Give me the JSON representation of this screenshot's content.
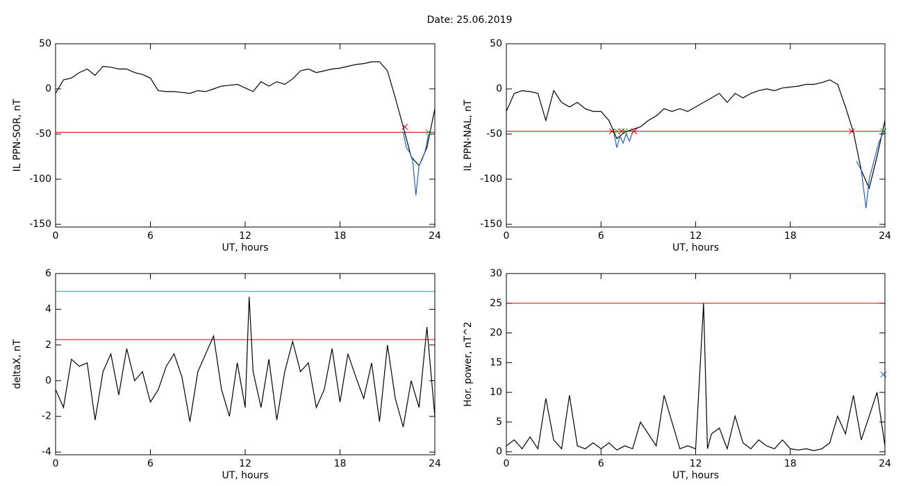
{
  "title": "Date:  25.06.2019",
  "chart_data": [
    {
      "type": "line",
      "xlabel": "UT, hours",
      "ylabel": "IL PPN-SOR, nT",
      "xlim": [
        0,
        24
      ],
      "xticks": [
        0,
        6,
        12,
        18,
        24
      ],
      "ylim": [
        -153,
        50
      ],
      "yticks": [
        -150,
        -100,
        -50,
        0,
        50
      ],
      "series": [
        {
          "color": "#000000",
          "x": [
            0,
            0.5,
            1,
            1.5,
            2,
            2.5,
            3,
            3.5,
            4,
            4.5,
            5,
            5.5,
            6,
            6.5,
            7,
            7.5,
            8,
            8.5,
            9,
            9.5,
            10,
            10.5,
            11,
            11.5,
            12,
            12.5,
            13,
            13.5,
            14,
            14.5,
            15,
            15.5,
            16,
            16.5,
            17,
            17.5,
            18,
            18.5,
            19,
            19.5,
            20,
            20.5,
            21,
            21.5,
            22,
            22.5,
            23,
            23.5,
            24
          ],
          "values": [
            -5,
            10,
            12,
            18,
            22,
            15,
            25,
            24,
            22,
            22,
            18,
            16,
            12,
            -2,
            -3,
            -3,
            -4,
            -5,
            -2,
            -3,
            0,
            3,
            4,
            5,
            1,
            -3,
            8,
            3,
            8,
            5,
            11,
            20,
            22,
            18,
            20,
            22,
            23,
            25,
            27,
            28,
            30,
            30,
            20,
            -10,
            -42,
            -75,
            -85,
            -65,
            -22
          ]
        },
        {
          "color": "#1f5fd0",
          "x": [
            22,
            22.2,
            22.4,
            22.6,
            22.8,
            23,
            23.2,
            23.4,
            23.6
          ],
          "values": [
            -48,
            -65,
            -70,
            -80,
            -118,
            -85,
            -78,
            -68,
            -50
          ]
        }
      ],
      "hlines": [
        {
          "value": -48,
          "color": "#cc0000"
        }
      ],
      "markers": [
        {
          "x": 22.1,
          "value": -42,
          "color": "#cc0000"
        },
        {
          "x": 23.6,
          "value": -48,
          "color": "#22aa22"
        }
      ]
    },
    {
      "type": "line",
      "xlabel": "UT, hours",
      "ylabel": "IL PPN-NAL, nT",
      "xlim": [
        0,
        24
      ],
      "xticks": [
        0,
        6,
        12,
        18,
        24
      ],
      "ylim": [
        -153,
        50
      ],
      "yticks": [
        -150,
        -100,
        -50,
        0,
        50
      ],
      "series": [
        {
          "color": "#000000",
          "x": [
            0,
            0.5,
            1,
            1.5,
            2,
            2.5,
            3,
            3.5,
            4,
            4.5,
            5,
            5.5,
            6,
            6.5,
            7,
            7.5,
            8,
            8.5,
            9,
            9.5,
            10,
            10.5,
            11,
            11.5,
            12,
            12.5,
            13,
            13.5,
            14,
            14.5,
            15,
            15.5,
            16,
            16.5,
            17,
            17.5,
            18,
            18.5,
            19,
            19.5,
            20,
            20.5,
            21,
            21.5,
            22,
            22.5,
            23,
            23.5,
            24
          ],
          "values": [
            -25,
            -5,
            -2,
            -3,
            -5,
            -35,
            -2,
            -15,
            -20,
            -15,
            -22,
            -25,
            -25,
            -35,
            -55,
            -48,
            -45,
            -42,
            -35,
            -30,
            -22,
            -25,
            -22,
            -25,
            -20,
            -15,
            -10,
            -5,
            -15,
            -5,
            -10,
            -5,
            -2,
            0,
            -2,
            1,
            2,
            3,
            5,
            5,
            7,
            10,
            5,
            -20,
            -48,
            -90,
            -110,
            -75,
            -35
          ]
        },
        {
          "color": "#1f5fd0",
          "x": [
            6.8,
            7.0,
            7.2,
            7.4,
            7.6,
            7.8,
            8.0,
            21.9,
            22.2,
            22.5,
            22.8,
            23,
            23.3,
            23.6,
            23.9
          ],
          "values": [
            -48,
            -65,
            -52,
            -60,
            -50,
            -58,
            -48,
            null,
            -80,
            -90,
            -132,
            -100,
            -80,
            -60,
            -48
          ]
        }
      ],
      "hlines": [
        {
          "value": -47,
          "color": "#cc0000"
        }
      ],
      "markers": [
        {
          "x": 6.7,
          "value": -47,
          "color": "#cc0000"
        },
        {
          "x": 7.0,
          "value": -47,
          "color": "#22aa22"
        },
        {
          "x": 7.3,
          "value": -47,
          "color": "#cc0000"
        },
        {
          "x": 7.5,
          "value": -47,
          "color": "#22aa22"
        },
        {
          "x": 8.1,
          "value": -47,
          "color": "#cc0000"
        },
        {
          "x": 21.9,
          "value": -47,
          "color": "#cc0000"
        },
        {
          "x": 23.9,
          "value": -47,
          "color": "#22aa22"
        }
      ]
    },
    {
      "type": "line",
      "xlabel": "UT, hours",
      "ylabel": "deltaX, nT",
      "xlim": [
        0,
        24
      ],
      "xticks": [
        0,
        6,
        12,
        18,
        24
      ],
      "ylim": [
        -4.15,
        6
      ],
      "yticks": [
        -4,
        -2,
        0,
        2,
        4,
        6
      ],
      "series": [
        {
          "color": "#000000",
          "x": [
            0,
            0.5,
            1,
            1.5,
            2,
            2.5,
            3,
            3.5,
            4,
            4.5,
            5,
            5.5,
            6,
            6.5,
            7,
            7.5,
            8,
            8.5,
            9,
            9.5,
            10,
            10.5,
            11,
            11.5,
            12,
            12.25,
            12.5,
            13,
            13.5,
            14,
            14.5,
            15,
            15.5,
            16,
            16.5,
            17,
            17.5,
            18,
            18.5,
            19,
            19.5,
            20,
            20.5,
            21,
            21.5,
            22,
            22.5,
            23,
            23.5,
            24
          ],
          "values": [
            -0.5,
            -1.5,
            1.2,
            0.8,
            1.0,
            -2.2,
            0.5,
            1.5,
            -0.8,
            1.8,
            0,
            0.5,
            -1.2,
            -0.5,
            0.8,
            1.5,
            0.2,
            -2.3,
            0.5,
            1.5,
            2.5,
            -0.5,
            -2.0,
            1.0,
            -1.5,
            4.7,
            0.5,
            -1.5,
            1.2,
            -2.2,
            0.5,
            2.2,
            0.5,
            1.0,
            -1.5,
            -0.5,
            1.8,
            -1.2,
            1.5,
            0.2,
            -1.0,
            1.0,
            -2.3,
            2.0,
            -1.0,
            -2.6,
            0,
            -1.5,
            3.0,
            -2.0
          ]
        }
      ],
      "hlines": [
        {
          "value": 5,
          "color": "#2f8fa8"
        },
        {
          "value": 2.3,
          "color": "#cc0000"
        }
      ],
      "markers": []
    },
    {
      "type": "line",
      "xlabel": "UT, hours",
      "ylabel": "Hor. power, nT^2",
      "xlim": [
        0,
        24
      ],
      "xticks": [
        0,
        6,
        12,
        18,
        24
      ],
      "ylim": [
        -0.5,
        30
      ],
      "yticks": [
        0,
        5,
        10,
        15,
        20,
        25,
        30
      ],
      "series": [
        {
          "color": "#000000",
          "x": [
            0,
            0.5,
            1,
            1.5,
            2,
            2.5,
            3,
            3.5,
            4,
            4.5,
            5,
            5.5,
            6,
            6.5,
            7,
            7.5,
            8,
            8.5,
            9,
            9.5,
            10,
            10.5,
            11,
            11.5,
            12,
            12.5,
            12.75,
            13,
            13.5,
            14,
            14.5,
            15,
            15.5,
            16,
            16.5,
            17,
            17.5,
            18,
            18.5,
            19,
            19.5,
            20,
            20.5,
            21,
            21.5,
            22,
            22.5,
            23,
            23.5,
            24
          ],
          "values": [
            1,
            2,
            0.5,
            2.5,
            0.5,
            9,
            2,
            0.5,
            9.5,
            1,
            0.5,
            1.5,
            0.5,
            1.5,
            0.3,
            1,
            0.5,
            5,
            3,
            1,
            9.5,
            5,
            0.5,
            1,
            0.5,
            25,
            0.5,
            3,
            4,
            0.5,
            6,
            1.5,
            0.5,
            2,
            1,
            0.5,
            2,
            0.5,
            0.3,
            0.5,
            0.2,
            0.5,
            1.5,
            6,
            3,
            9.5,
            2,
            6,
            10,
            1
          ]
        }
      ],
      "hlines": [
        {
          "value": 25,
          "color": "#cc0000"
        }
      ],
      "markers": [
        {
          "x": 23.9,
          "value": 13,
          "color": "#1f5fd0"
        }
      ]
    }
  ]
}
